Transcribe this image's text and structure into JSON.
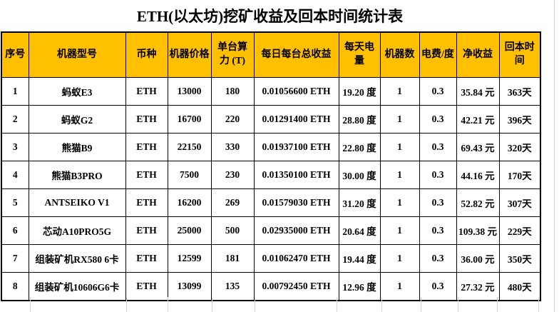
{
  "page": {
    "title": "ETH(以太坊)挖矿收益及回本时间统计表"
  },
  "colors": {
    "header_bg": "#FFC000",
    "table_border": "#000000",
    "spreadsheet_gridline": "#d8d8d8",
    "text": "#000000"
  },
  "chart_data": {
    "type": "table",
    "title": "ETH(以太坊)挖矿收益及回本时间统计表",
    "legend_position": "none",
    "grid": "on",
    "columns": [
      {
        "key": "index",
        "label": "序号"
      },
      {
        "key": "model",
        "label": "机器型号"
      },
      {
        "key": "coin",
        "label": "币种"
      },
      {
        "key": "price",
        "label": "机器价格"
      },
      {
        "key": "hashrate",
        "label": "单台算力 (T)"
      },
      {
        "key": "daily_income",
        "label": "每日每台总收益"
      },
      {
        "key": "daily_power",
        "label": "每天电量"
      },
      {
        "key": "machine_count",
        "label": "机器数"
      },
      {
        "key": "electricity_fee",
        "label": "电费/度"
      },
      {
        "key": "net_income",
        "label": "净收益"
      },
      {
        "key": "payback_time",
        "label": "回本时间"
      }
    ],
    "rows": [
      [
        "1",
        "蚂蚁E3",
        "ETH",
        "13000",
        "180",
        "0.01056600 ETH",
        "19.20 度",
        "1",
        "0.3",
        "35.84 元",
        "363天"
      ],
      [
        "2",
        "蚂蚁G2",
        "ETH",
        "16700",
        "220",
        "0.01291400 ETH",
        "28.80 度",
        "1",
        "0.3",
        "42.21 元",
        "396天"
      ],
      [
        "3",
        "熊猫B9",
        "ETH",
        "22150",
        "330",
        "0.01937100 ETH",
        "22.80 度",
        "1",
        "0.3",
        "69.43 元",
        "320天"
      ],
      [
        "4",
        "熊猫B3PRO",
        "ETH",
        "7500",
        "230",
        "0.01350100 ETH",
        "30.00 度",
        "1",
        "0.3",
        "44.16 元",
        "170天"
      ],
      [
        "5",
        "ANTSEIKO V1",
        "ETH",
        "16200",
        "269",
        "0.01579030 ETH",
        "31.20 度",
        "1",
        "0.3",
        "52.82 元",
        "307天"
      ],
      [
        "6",
        "芯动A10PRO5G",
        "ETH",
        "25000",
        "500",
        "0.02935000 ETH",
        "20.64 度",
        "1",
        "0.3",
        "109.38 元",
        "229天"
      ],
      [
        "7",
        "组装矿机RX580 6卡",
        "ETH",
        "12599",
        "181",
        "0.01062470 ETH",
        "19.44 度",
        "1",
        "0.3",
        "36.00 元",
        "350天"
      ],
      [
        "8",
        "组装矿机10606G6卡",
        "ETH",
        "13099",
        "135",
        "0.00792450 ETH",
        "12.96 度",
        "1",
        "0.3",
        "27.32 元",
        "480天"
      ]
    ]
  }
}
